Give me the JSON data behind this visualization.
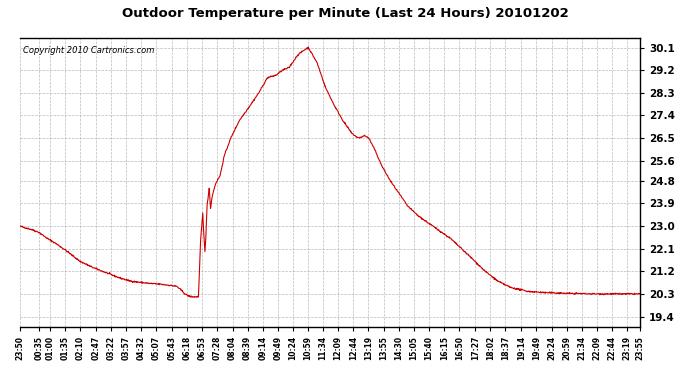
{
  "title": "Outdoor Temperature per Minute (Last 24 Hours) 20101202",
  "copyright_text": "Copyright 2010 Cartronics.com",
  "background_color": "#ffffff",
  "plot_bg_color": "#ffffff",
  "line_color": "#cc0000",
  "grid_color": "#aaaaaa",
  "y_ticks": [
    19.4,
    20.3,
    21.2,
    22.1,
    23.0,
    23.9,
    24.8,
    25.6,
    26.5,
    27.4,
    28.3,
    29.2,
    30.1
  ],
  "ylim": [
    19.0,
    30.5
  ],
  "x_labels": [
    "23:50",
    "00:35",
    "01:00",
    "01:35",
    "02:10",
    "02:47",
    "03:22",
    "03:57",
    "04:32",
    "05:07",
    "05:43",
    "06:18",
    "06:53",
    "07:28",
    "08:04",
    "08:39",
    "09:14",
    "09:49",
    "10:24",
    "10:59",
    "11:34",
    "12:09",
    "12:44",
    "13:19",
    "13:55",
    "14:30",
    "15:05",
    "15:40",
    "16:15",
    "16:50",
    "17:27",
    "18:02",
    "18:37",
    "19:14",
    "19:49",
    "20:24",
    "20:59",
    "21:34",
    "22:09",
    "22:44",
    "23:19",
    "23:55"
  ],
  "waypoints": [
    [
      0,
      23.0
    ],
    [
      10,
      22.95
    ],
    [
      30,
      22.85
    ],
    [
      45,
      22.75
    ],
    [
      65,
      22.5
    ],
    [
      85,
      22.3
    ],
    [
      110,
      22.0
    ],
    [
      140,
      21.6
    ],
    [
      170,
      21.35
    ],
    [
      200,
      21.15
    ],
    [
      230,
      20.95
    ],
    [
      255,
      20.82
    ],
    [
      270,
      20.78
    ],
    [
      285,
      20.75
    ],
    [
      300,
      20.72
    ],
    [
      315,
      20.7
    ],
    [
      330,
      20.68
    ],
    [
      345,
      20.65
    ],
    [
      365,
      20.6
    ],
    [
      375,
      20.45
    ],
    [
      385,
      20.28
    ],
    [
      395,
      20.2
    ],
    [
      405,
      20.18
    ],
    [
      415,
      20.19
    ],
    [
      420,
      22.4
    ],
    [
      425,
      23.5
    ],
    [
      427,
      22.8
    ],
    [
      430,
      22.0
    ],
    [
      432,
      22.5
    ],
    [
      435,
      23.8
    ],
    [
      440,
      24.5
    ],
    [
      443,
      23.7
    ],
    [
      447,
      24.2
    ],
    [
      455,
      24.7
    ],
    [
      465,
      25.0
    ],
    [
      475,
      25.8
    ],
    [
      490,
      26.5
    ],
    [
      510,
      27.2
    ],
    [
      535,
      27.8
    ],
    [
      555,
      28.3
    ],
    [
      575,
      28.9
    ],
    [
      595,
      29.0
    ],
    [
      610,
      29.2
    ],
    [
      625,
      29.3
    ],
    [
      645,
      29.8
    ],
    [
      660,
      30.0
    ],
    [
      670,
      30.1
    ],
    [
      690,
      29.5
    ],
    [
      710,
      28.5
    ],
    [
      730,
      27.8
    ],
    [
      750,
      27.2
    ],
    [
      770,
      26.7
    ],
    [
      785,
      26.5
    ],
    [
      795,
      26.55
    ],
    [
      800,
      26.6
    ],
    [
      810,
      26.5
    ],
    [
      825,
      26.0
    ],
    [
      840,
      25.4
    ],
    [
      860,
      24.8
    ],
    [
      880,
      24.3
    ],
    [
      900,
      23.8
    ],
    [
      925,
      23.4
    ],
    [
      950,
      23.1
    ],
    [
      975,
      22.8
    ],
    [
      1000,
      22.5
    ],
    [
      1025,
      22.1
    ],
    [
      1050,
      21.7
    ],
    [
      1080,
      21.2
    ],
    [
      1110,
      20.8
    ],
    [
      1140,
      20.55
    ],
    [
      1180,
      20.4
    ],
    [
      1220,
      20.35
    ],
    [
      1280,
      20.32
    ],
    [
      1340,
      20.3
    ],
    [
      1400,
      20.3
    ],
    [
      1439,
      20.3
    ]
  ],
  "ylim_low": 19.0,
  "ylim_high": 30.5
}
